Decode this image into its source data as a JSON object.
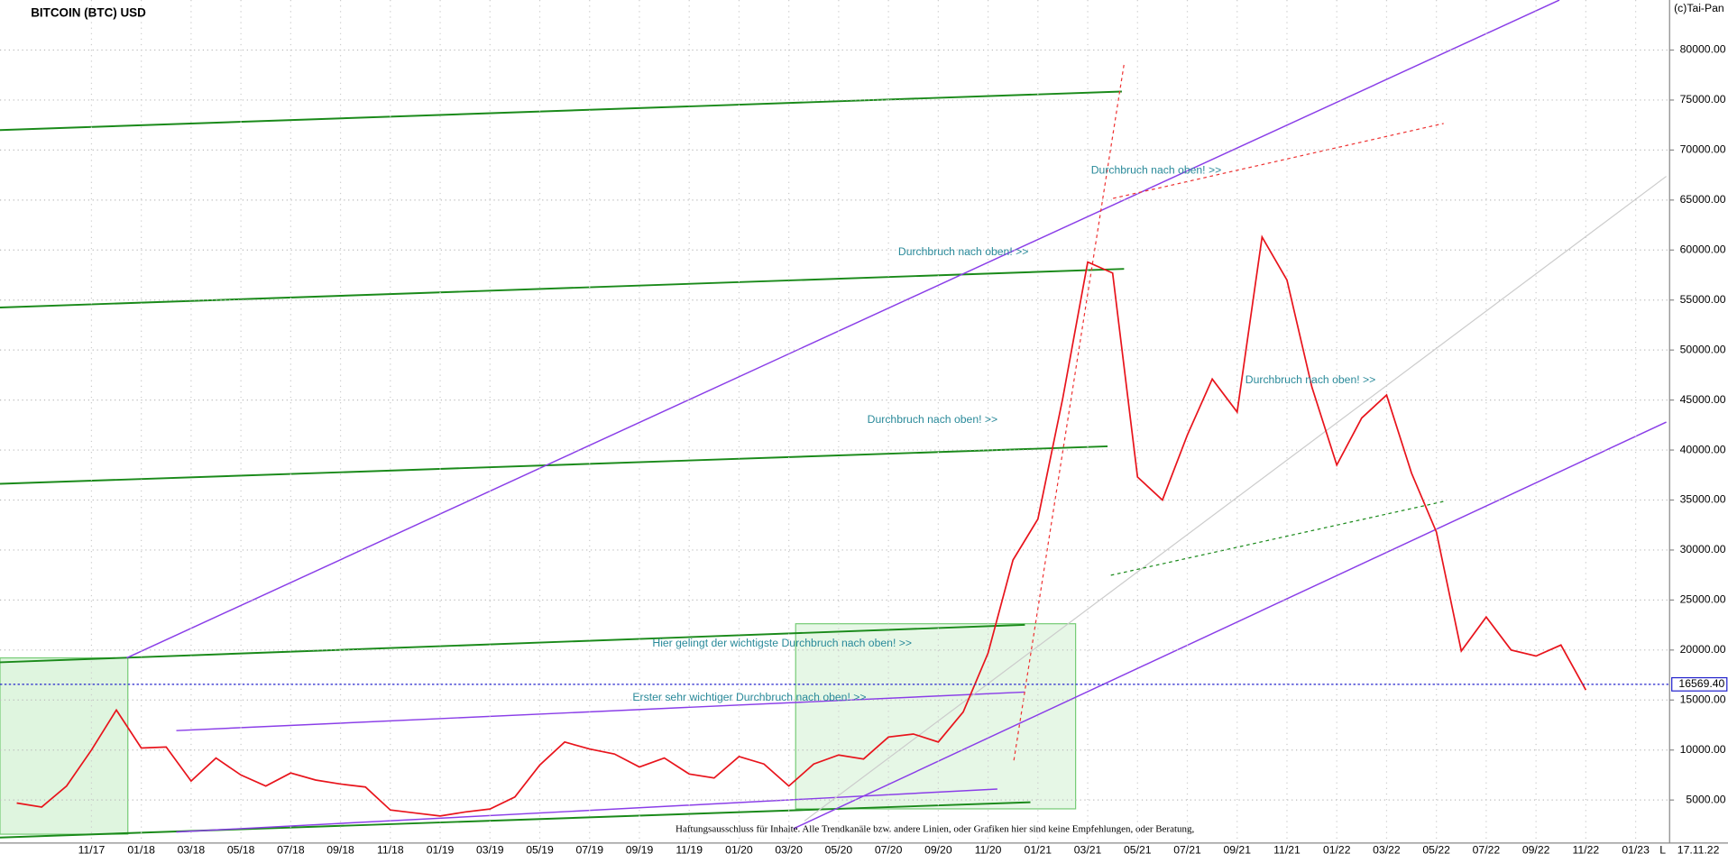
{
  "chart_data": {
    "type": "line",
    "title": "BITCOIN (BTC) USD",
    "copyright": "(c)Tai-Pan",
    "date_label": "17.11.22",
    "scale_label": "L",
    "x": [
      "08/17",
      "09/17",
      "10/17",
      "11/17",
      "12/17",
      "01/18",
      "02/18",
      "03/18",
      "04/18",
      "05/18",
      "06/18",
      "07/18",
      "08/18",
      "09/18",
      "10/18",
      "11/18",
      "12/18",
      "01/19",
      "02/19",
      "03/19",
      "04/19",
      "05/19",
      "06/19",
      "07/19",
      "08/19",
      "09/19",
      "10/19",
      "11/19",
      "12/19",
      "01/20",
      "02/20",
      "03/20",
      "04/20",
      "05/20",
      "06/20",
      "07/20",
      "08/20",
      "09/20",
      "10/20",
      "11/20",
      "12/20",
      "01/21",
      "02/21",
      "03/21",
      "04/21",
      "05/21",
      "06/21",
      "07/21",
      "08/21",
      "09/21",
      "10/21",
      "11/21",
      "12/21",
      "01/22",
      "02/22",
      "03/22",
      "04/22",
      "05/22",
      "06/22",
      "07/22",
      "08/22",
      "09/22",
      "10/22",
      "11/22"
    ],
    "series": [
      {
        "name": "BTC",
        "color": "#e8141c",
        "values": [
          4700,
          4300,
          6400,
          10000,
          14000,
          10200,
          10300,
          6900,
          9200,
          7500,
          6400,
          7700,
          7000,
          6600,
          6300,
          4000,
          3700,
          3400,
          3800,
          4100,
          5300,
          8500,
          10800,
          10100,
          9600,
          8300,
          9200,
          7600,
          7200,
          9350,
          8600,
          6400,
          8600,
          9500,
          9100,
          11300,
          11600,
          10800,
          13800,
          19700,
          29000,
          33100,
          45200,
          58800,
          57700,
          37300,
          35000,
          41500,
          47100,
          43800,
          61300,
          57000,
          46300,
          38500,
          43200,
          45500,
          37700,
          31800,
          19900,
          23300,
          20000,
          19400,
          20500,
          16000
        ]
      }
    ],
    "xticks": [
      "11/17",
      "01/18",
      "03/18",
      "05/18",
      "07/18",
      "09/18",
      "11/18",
      "01/19",
      "03/19",
      "05/19",
      "07/19",
      "09/19",
      "11/19",
      "01/20",
      "03/20",
      "05/20",
      "07/20",
      "09/20",
      "11/20",
      "01/21",
      "03/21",
      "05/21",
      "07/21",
      "09/21",
      "11/21",
      "01/22",
      "03/22",
      "05/22",
      "07/22",
      "09/22",
      "11/22",
      "01/23"
    ],
    "ylim": [
      700,
      85000
    ],
    "yticks": [
      {
        "value": 5000,
        "label": "5000.00"
      },
      {
        "value": 10000,
        "label": "10000.00"
      },
      {
        "value": 15000,
        "label": "15000.00"
      },
      {
        "value": 20000,
        "label": "20000.00"
      },
      {
        "value": 25000,
        "label": "25000.00"
      },
      {
        "value": 30000,
        "label": "30000.00"
      },
      {
        "value": 35000,
        "label": "35000.00"
      },
      {
        "value": 40000,
        "label": "40000.00"
      },
      {
        "value": 45000,
        "label": "45000.00"
      },
      {
        "value": 50000,
        "label": "50000.00"
      },
      {
        "value": 55000,
        "label": "55000.00"
      },
      {
        "value": 60000,
        "label": "60000.00"
      },
      {
        "value": 65000,
        "label": "65000.00"
      },
      {
        "value": 70000,
        "label": "70000.00"
      },
      {
        "value": 75000,
        "label": "75000.00"
      },
      {
        "value": 80000,
        "label": "80000.00"
      }
    ],
    "grid": true,
    "last_price": {
      "value": 16569.4,
      "label": "16569.40"
    },
    "annotations": [
      "Durchbruch nach oben! >>",
      "Durchbruch nach oben! >>",
      "Durchbruch nach oben! >>",
      "Durchbruch nach oben! >>",
      "Hier gelingt der wichtigste Durchbruch nach oben! >>",
      "Erster sehr wichtiger Durchbruch nach oben! >>"
    ],
    "disclaimer": "Haftungsausschluss für Inhalte. Alle Trendkanäle bzw. andere Linien, oder Grafiken hier sind keine Empfehlungen, oder Beratung,"
  }
}
